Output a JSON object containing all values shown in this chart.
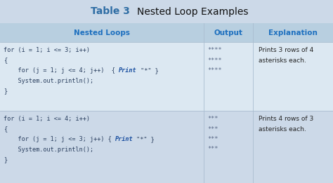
{
  "title_bold": "Table 3",
  "title_regular": "Nested Loop Examples",
  "title_color": "#2e6da4",
  "title_bg": "#ccd9e8",
  "header_bg": "#b8cfe0",
  "row1_bg": "#dce8f2",
  "row2_bg": "#ccd9e8",
  "outer_bg": "#ccd9e8",
  "col_header_color": "#1e70bf",
  "col_headers": [
    "Nested Loops",
    "Output",
    "Explanation"
  ],
  "row1_code": [
    "for (i = 1; i <= 3; i++)",
    "{",
    "    for (j = 1; j <= 4; j++)  { |Print| \"*\" }",
    "    System.out.println();",
    "}"
  ],
  "row1_output": [
    "****",
    "****",
    "****"
  ],
  "row1_explanation": [
    "Prints 3 rows of 4",
    "asterisks each."
  ],
  "row2_code": [
    "for (i = 1; i <= 4; i++)",
    "{",
    "    for (j = 1; j <= 3; j++) { |Print| \"*\" }",
    "    System.out.println();",
    "}"
  ],
  "row2_output": [
    "***",
    "***",
    "***",
    "***"
  ],
  "row2_explanation": [
    "Prints 4 rows of 3",
    "asterisks each."
  ],
  "code_color": "#2a3f5f",
  "output_color": "#5a6a88",
  "explanation_color": "#222222",
  "print_color": "#1a4fa0",
  "figw": 4.74,
  "figh": 2.61,
  "dpi": 100
}
